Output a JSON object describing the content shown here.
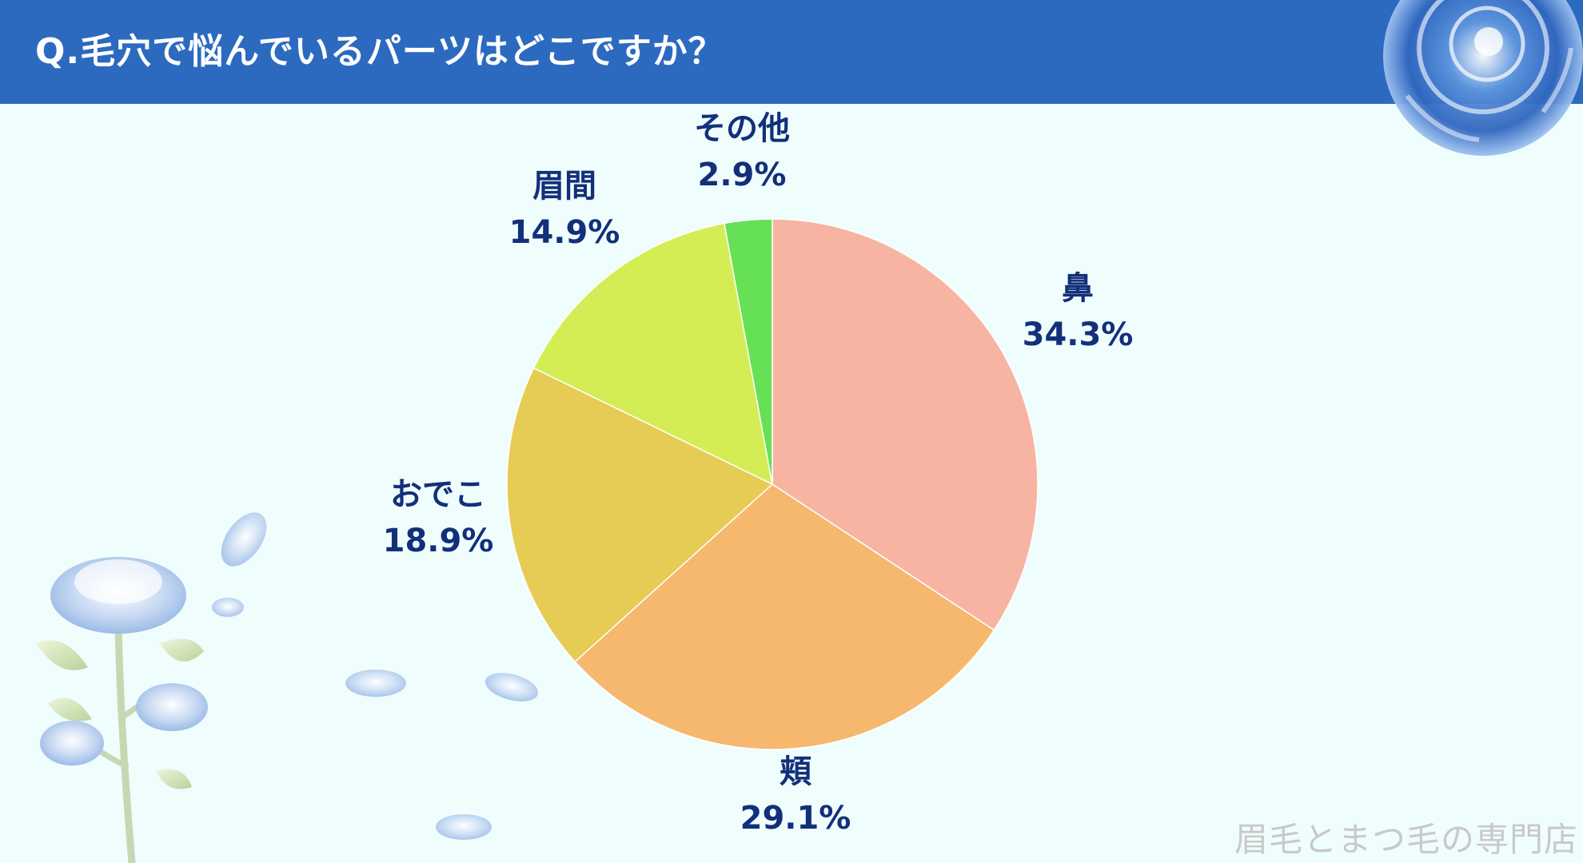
{
  "header": {
    "title": "Q.毛穴で悩んでいるパーツはどこですか？"
  },
  "footer": {
    "watermark": "眉毛とまつ毛の専門店"
  },
  "colors": {
    "header_bg": "#2c6ac0",
    "background": "#f0fdfd",
    "label_text": "#12307a"
  },
  "chart_data": {
    "type": "pie",
    "title": "Q.毛穴で悩んでいるパーツはどこですか？",
    "start": "12 o'clock, clockwise",
    "slices": [
      {
        "name": "鼻",
        "value": 34.3,
        "label": "34.3%",
        "color": "#f8b4a2"
      },
      {
        "name": "頬",
        "value": 29.1,
        "label": "29.1%",
        "color": "#f5b86e"
      },
      {
        "name": "おでこ",
        "value": 18.9,
        "label": "18.9%",
        "color": "#e6cc55"
      },
      {
        "name": "眉間",
        "value": 14.9,
        "label": "14.9%",
        "color": "#d4ed55"
      },
      {
        "name": "その他",
        "value": 2.9,
        "label": "2.9%",
        "color": "#66e055"
      }
    ]
  }
}
